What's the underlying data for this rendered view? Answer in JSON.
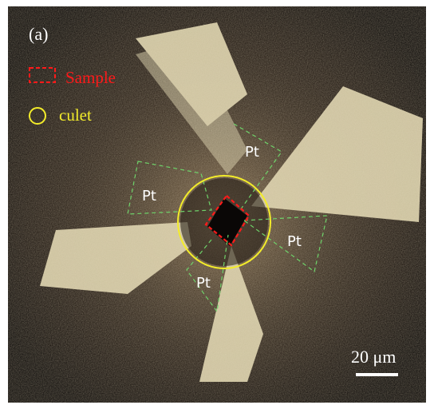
{
  "image": {
    "panel_label": "(a)",
    "legend": [
      {
        "label": "Sample",
        "color": "#ff1a1a",
        "marker": "dashed-rectangle-icon"
      },
      {
        "label": "culet",
        "color": "#f3ec2a",
        "marker": "circle-icon"
      }
    ],
    "electrode_labels": [
      "Pt",
      "Pt",
      "Pt",
      "Pt"
    ],
    "scale_bar": {
      "label": "20 μm",
      "color": "#ffffff"
    },
    "colors": {
      "background": "#0b0806",
      "electrode": "#d8cfa8",
      "guide": "#6fd36a",
      "sample": "#ff1a1a",
      "culet": "#f3ec2a"
    }
  }
}
